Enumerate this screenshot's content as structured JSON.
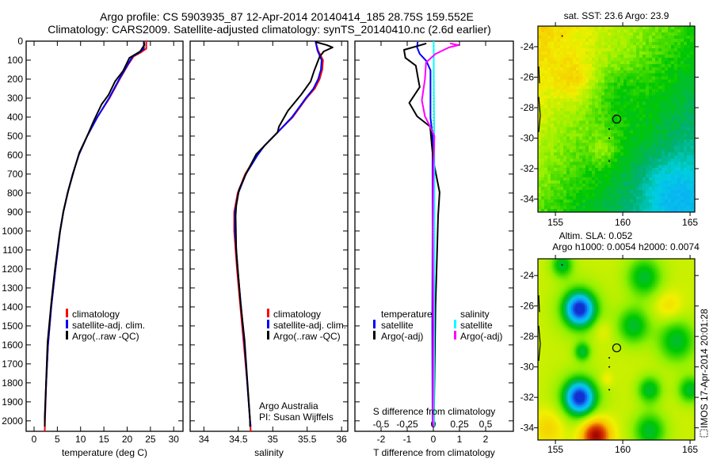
{
  "title": {
    "line1": "Argo profile: CS 5903935_87 12-Apr-2014 20140414_185 28.75S 159.552E",
    "line2": "Climatology: CARS2009. Satellite-adjusted climatology: synTS_20140410.nc (2.6d earlier)"
  },
  "credit": {
    "line1": "Argo Australia",
    "line2": "PI: Susan Wijffels"
  },
  "imos_stamp": "IMOS 17-Apr-2014 20:01:28",
  "colors": {
    "climatology": "#ff0000",
    "satellite": "#0000ff",
    "argo": "#000000",
    "sat_salinity": "#00ffff",
    "argo_salinity": "#ff00ff"
  },
  "chart_data": [
    {
      "type": "line",
      "title": "",
      "xlabel": "temperature (deg C)",
      "ylabel": "",
      "xlim": [
        -1.7,
        32
      ],
      "ylim": [
        2055,
        0
      ],
      "xticks": [
        0,
        5,
        10,
        15,
        20,
        25,
        30
      ],
      "xtick_labels": [
        "0",
        "5",
        "10",
        "15",
        "20",
        "25",
        "30"
      ],
      "yticks": [
        0,
        100,
        200,
        300,
        400,
        500,
        600,
        700,
        800,
        900,
        1000,
        1100,
        1200,
        1300,
        1400,
        1500,
        1600,
        1700,
        1800,
        1900,
        2000
      ],
      "ytick_labels": [
        "0",
        "100",
        "200",
        "300",
        "400",
        "500",
        "600",
        "700",
        "800",
        "900",
        "1000",
        "1100",
        "1200",
        "1300",
        "1400",
        "1500",
        "1600",
        "1700",
        "1800",
        "1900",
        "2000"
      ],
      "legend": [
        "climatology",
        "satellite-adj. clim.",
        "Argo(..raw -QC)"
      ],
      "legend_placement": "center",
      "series": [
        {
          "name": "climatology",
          "color": "#ff0000",
          "depth": [
            0,
            40,
            60,
            80,
            120,
            200,
            300,
            400,
            500,
            600,
            700,
            800,
            900,
            1000,
            1200,
            1400,
            1600,
            1800,
            2000,
            2055
          ],
          "values": [
            24.1,
            24.1,
            22.9,
            21.4,
            20.3,
            18.4,
            16.2,
            13.6,
            11.4,
            9.6,
            8.3,
            7.2,
            6.3,
            5.6,
            4.6,
            3.7,
            3.0,
            2.6,
            2.35,
            2.3
          ]
        },
        {
          "name": "satellite-adj. clim.",
          "color": "#0000ff",
          "depth": [
            0,
            40,
            60,
            80,
            120,
            200,
            300,
            400,
            500,
            600,
            700,
            800,
            900,
            1000,
            1200,
            1400,
            1600,
            1800,
            2000,
            2030
          ],
          "values": [
            23.6,
            23.6,
            22.6,
            21.2,
            20.2,
            18.3,
            16.1,
            13.6,
            11.4,
            9.6,
            8.3,
            7.2,
            6.3,
            5.6,
            4.6,
            3.7,
            3.0,
            2.6,
            2.3,
            2.3
          ]
        },
        {
          "name": "Argo(..raw -QC)",
          "color": "#000000",
          "depth": [
            4,
            20,
            54,
            88,
            158,
            212,
            283,
            333,
            421,
            500,
            588,
            688,
            783,
            896,
            1020,
            1200,
            1367,
            1588,
            1783,
            1980,
            2030
          ],
          "values": [
            23.6,
            23.7,
            22.8,
            20.5,
            19.1,
            17.4,
            16.0,
            14.5,
            12.8,
            11.4,
            9.7,
            8.5,
            7.4,
            6.3,
            5.45,
            4.5,
            3.75,
            2.9,
            2.6,
            2.3,
            2.3
          ]
        }
      ]
    },
    {
      "type": "line",
      "xlabel": "salinity",
      "xlim": [
        33.8,
        36.09
      ],
      "ylim": [
        2055,
        0
      ],
      "xticks": [
        34,
        34.5,
        35,
        35.5,
        36
      ],
      "xtick_labels": [
        "34",
        "34.5",
        "35",
        "35.5",
        "36"
      ],
      "legend": [
        "climatology",
        "satellite-adj. clim.",
        "Argo(..raw -QC)"
      ],
      "legend_placement": "center-right",
      "series": [
        {
          "name": "climatology",
          "color": "#ff0000",
          "depth": [
            0,
            50,
            100,
            150,
            200,
            250,
            300,
            400,
            480,
            550,
            600,
            700,
            800,
            900,
            1000,
            1200,
            1400,
            1600,
            1800,
            2000,
            2055
          ],
          "values": [
            35.62,
            35.66,
            35.73,
            35.72,
            35.68,
            35.61,
            35.49,
            35.29,
            35.07,
            34.88,
            34.77,
            34.6,
            34.49,
            34.44,
            34.44,
            34.48,
            34.53,
            34.58,
            34.63,
            34.67,
            34.68
          ]
        },
        {
          "name": "satellite-adj. clim.",
          "color": "#0000ff",
          "depth": [
            0,
            50,
            100,
            150,
            200,
            250,
            300,
            400,
            480,
            550,
            600,
            700,
            800,
            900,
            1000,
            1200,
            1400,
            1600,
            1800,
            2000,
            2030
          ],
          "values": [
            35.62,
            35.65,
            35.71,
            35.7,
            35.66,
            35.59,
            35.48,
            35.28,
            35.07,
            34.88,
            34.78,
            34.61,
            34.5,
            34.45,
            34.45,
            34.49,
            34.54,
            34.59,
            34.63,
            34.67,
            34.68
          ]
        },
        {
          "name": "Argo(..raw -QC)",
          "color": "#000000",
          "depth": [
            4,
            20,
            33,
            54,
            83,
            158,
            212,
            283,
            367,
            450,
            480,
            596,
            700,
            783,
            867,
            921,
            1100,
            1367,
            1575,
            1783,
            1992,
            2030
          ],
          "values": [
            35.62,
            35.78,
            35.87,
            35.74,
            35.68,
            35.6,
            35.55,
            35.41,
            35.22,
            35.09,
            35.07,
            34.76,
            34.61,
            34.51,
            34.47,
            34.46,
            34.47,
            34.53,
            34.59,
            34.63,
            34.67,
            34.67
          ]
        }
      ]
    },
    {
      "type": "line",
      "xlabel": "T difference from climatology",
      "x2label": "S difference from climatology",
      "xlim": [
        -3,
        3.06
      ],
      "ylim": [
        2055,
        0
      ],
      "xticks": [
        -2,
        -1,
        0,
        1,
        2
      ],
      "xtick_labels": [
        "-2",
        "-1",
        "0",
        "1",
        "2"
      ],
      "x2ticks": [
        -0.5,
        -0.25,
        0,
        0.25,
        0.5
      ],
      "x2tick_labels": [
        "-0.5",
        "-0.25",
        "0",
        "0.25",
        "0.5"
      ],
      "legend_groups": [
        {
          "heading": "temperature",
          "items": [
            "satellite",
            "Argo(-adj)"
          ]
        },
        {
          "heading": "salinity",
          "items": [
            "satellite",
            "Argo(-adj)"
          ]
        }
      ],
      "series": [
        {
          "name": "temperature satellite",
          "axis": "T",
          "color": "#0000ff",
          "depth": [
            4,
            33,
            67,
            104,
            154,
            404,
            500,
            1000,
            1500,
            2000,
            2030
          ],
          "values": [
            -0.6,
            -0.62,
            -0.52,
            -0.27,
            -0.11,
            -0.11,
            -0.03,
            -0.03,
            -0.04,
            -0.03,
            -0.03
          ]
        },
        {
          "name": "temperature Argo(-adj)",
          "axis": "T",
          "color": "#000000",
          "depth": [
            12,
            46,
            88,
            129,
            200,
            242,
            325,
            396,
            450,
            546,
            629,
            796,
            921,
            1129,
            1400,
            1700,
            2000,
            2030
          ],
          "values": [
            -0.27,
            -1.12,
            -1.07,
            -0.67,
            -0.58,
            -0.52,
            -0.92,
            -0.62,
            -0.12,
            -0.06,
            0,
            0.24,
            0.18,
            0.14,
            0.08,
            0.05,
            0.02,
            0.02
          ]
        },
        {
          "name": "salinity satellite",
          "axis": "S",
          "color": "#00ffff",
          "depth": [
            0,
            300,
            600,
            1000,
            1500,
            2030
          ],
          "values": [
            0.003,
            0.005,
            0.01,
            0.01,
            0.008,
            0.005
          ]
        },
        {
          "name": "salinity Argo(-adj)",
          "axis": "S",
          "color": "#ff00ff",
          "depth": [
            12,
            21,
            33,
            67,
            112,
            200,
            312,
            396,
            450,
            500,
            700,
            1000,
            1500,
            2000,
            2030
          ],
          "values": [
            0.16,
            0.24,
            0.15,
            0.02,
            -0.07,
            -0.08,
            -0.11,
            -0.08,
            -0.03,
            0.01,
            0.0,
            -0.005,
            0.0,
            -0.005,
            0.0
          ]
        }
      ]
    },
    {
      "type": "heatmap",
      "title": "sat. SST: 23.6 Argo: 23.9",
      "xlim": [
        153.7,
        165.35
      ],
      "ylim": [
        -34.85,
        -22.65
      ],
      "xticks": [
        155,
        160,
        165
      ],
      "xtick_labels": [
        "155",
        "160",
        "165"
      ],
      "yticks": [
        -24,
        -26,
        -28,
        -30,
        -32,
        -34
      ],
      "ytick_labels": [
        "-24",
        "-26",
        "-28",
        "-30",
        "-32",
        "-34"
      ],
      "marker": {
        "lon": 159.552,
        "lat": -28.75
      }
    },
    {
      "type": "heatmap",
      "title": "Altim. SLA: 0.052",
      "subtitle": "Argo h1000: 0.0054 h2000: 0.0074",
      "xlim": [
        153.7,
        165.35
      ],
      "ylim": [
        -34.8,
        -22.9
      ],
      "xticks": [
        155,
        160,
        165
      ],
      "xtick_labels": [
        "155",
        "160",
        "165"
      ],
      "yticks": [
        -24,
        -26,
        -28,
        -30,
        -32,
        -34
      ],
      "ytick_labels": [
        "-24",
        "-26",
        "-28",
        "-30",
        "-32",
        "-34"
      ],
      "marker": {
        "lon": 159.552,
        "lat": -28.75
      }
    }
  ]
}
